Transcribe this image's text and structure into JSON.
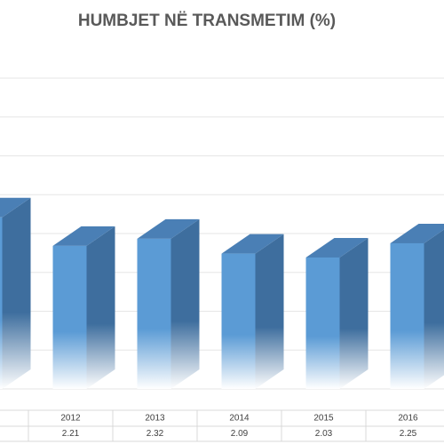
{
  "chart_data": {
    "type": "bar3d",
    "title": "HUMBJET NË TRANSMETIM (%)",
    "categories": [
      null,
      "2012",
      "2013",
      "2014",
      "2015",
      "2016"
    ],
    "values": [
      2.65,
      2.21,
      2.32,
      2.09,
      2.03,
      2.25
    ],
    "color": "#5b9bd5",
    "ylim": [
      0,
      4.8
    ],
    "yticks": [
      0,
      0.6,
      1.2,
      1.8,
      2.4,
      3,
      3.6,
      4.2,
      4.8
    ],
    "grid": true
  }
}
